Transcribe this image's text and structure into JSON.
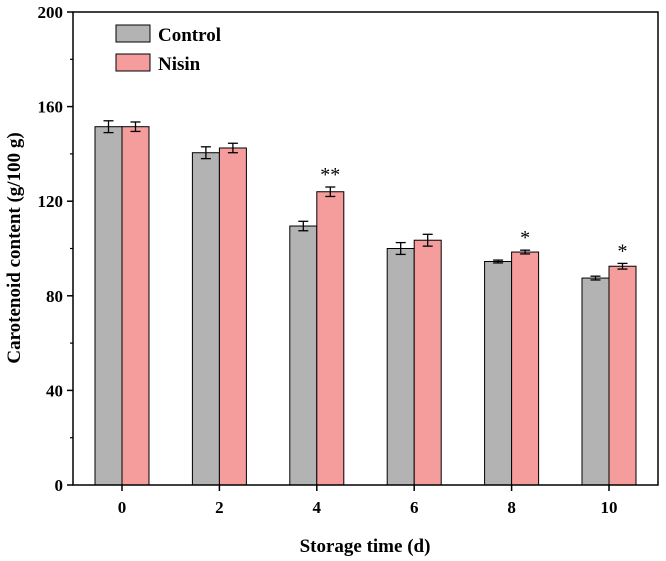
{
  "chart_data": {
    "type": "bar",
    "categories": [
      "0",
      "2",
      "4",
      "6",
      "8",
      "10"
    ],
    "series": [
      {
        "name": "Control",
        "color": "#b3b3b3",
        "values": [
          151.5,
          140.5,
          109.5,
          100.0,
          94.5,
          87.5
        ],
        "errors": [
          2.5,
          2.5,
          2.0,
          2.5,
          0.6,
          0.8
        ]
      },
      {
        "name": "Nisin",
        "color": "#f59c9c",
        "values": [
          151.5,
          142.5,
          124.0,
          103.5,
          98.5,
          92.5
        ],
        "errors": [
          2.0,
          2.0,
          2.0,
          2.5,
          0.8,
          1.2
        ]
      }
    ],
    "significance": [
      "",
      "",
      "**",
      "",
      "*",
      "*"
    ],
    "xlabel": "Storage time (d)",
    "ylabel": "Carotenoid content (g/100 g)",
    "ylim": [
      0,
      200
    ],
    "yticks": [
      0,
      40,
      80,
      120,
      160,
      200
    ],
    "grid": false,
    "legend_position": "top-left"
  }
}
